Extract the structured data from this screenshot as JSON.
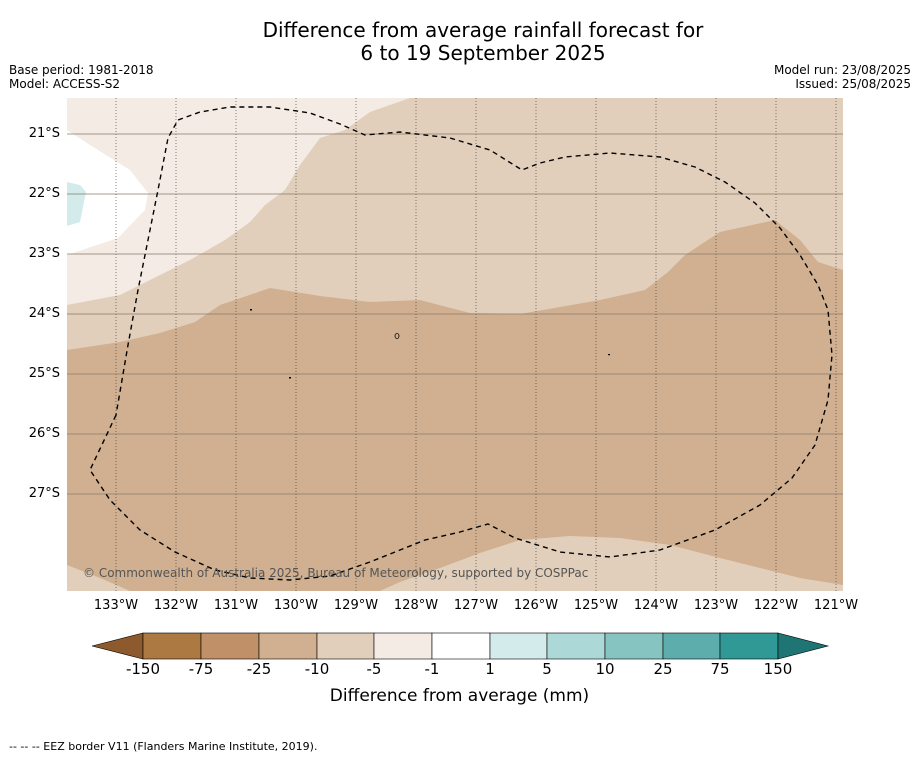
{
  "title_line1": "Difference from average rainfall forecast for",
  "title_line2": "6 to 19 September 2025",
  "base_period": "Base period: 1981-2018",
  "model": "Model: ACCESS-S2",
  "model_run": "Model run: 23/08/2025",
  "issued": "Issued: 25/08/2025",
  "latitudes": [
    "21°S",
    "22°S",
    "23°S",
    "24°S",
    "25°S",
    "26°S",
    "27°S"
  ],
  "longitudes": [
    "133°W",
    "132°W",
    "131°W",
    "130°W",
    "129°W",
    "128°W",
    "127°W",
    "126°W",
    "125°W",
    "124°W",
    "123°W",
    "122°W",
    "121°W"
  ],
  "copyright": "© Commonwealth of Australia 2025, Bureau of Meteorology, supported by COSPPac",
  "colorbar": {
    "title": "Difference from average (mm)",
    "labels": [
      "-150",
      "-75",
      "-25",
      "-10",
      "-5",
      "-1",
      "1",
      "5",
      "10",
      "25",
      "75",
      "150"
    ],
    "colors": [
      "#8c5a2d",
      "#ad7943",
      "#c09168",
      "#d0b090",
      "#e2cfbb",
      "#f3ebe4",
      "#ffffff",
      "#d3ebea",
      "#acd8d7",
      "#86c4c2",
      "#5cadab",
      "#309895",
      "#1f7573"
    ]
  },
  "footnote": "--  --  -- EEZ border V11 (Flanders Marine Institute, 2019)."
}
